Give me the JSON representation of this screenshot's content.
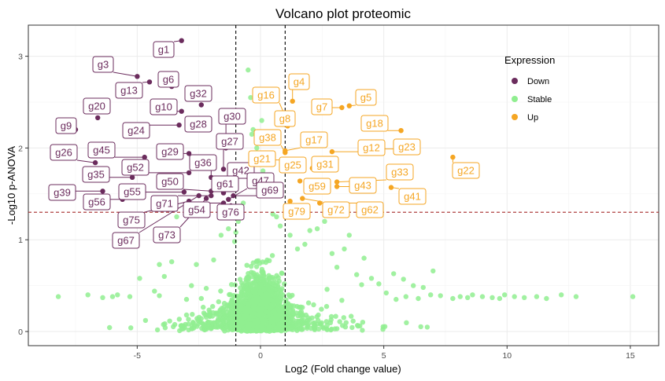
{
  "chart_data": {
    "type": "scatter",
    "title": "Volcano plot proteomic",
    "xlabel": "Log2 (Fold change value)",
    "ylabel": "-Log10 p-ANOVA",
    "xlim": [
      -9.3,
      16.3
    ],
    "ylim": [
      -0.15,
      3.33
    ],
    "x_ticks": [
      -5,
      0,
      5,
      10,
      15
    ],
    "y_ticks": [
      0,
      1,
      2,
      3
    ],
    "grid": true,
    "thresholds": {
      "fold_change_x": [
        -1,
        1
      ],
      "p_value_y": 1.3
    },
    "legend": {
      "title": "Expression",
      "position": "top-right",
      "entries": [
        {
          "label": "Down",
          "color": "#6b2c5d"
        },
        {
          "label": "Stable",
          "color": "#90ee90"
        },
        {
          "label": "Up",
          "color": "#f5a623"
        }
      ]
    },
    "colors": {
      "Down": "#6b2c5d",
      "Stable": "#90ee90",
      "Up": "#f5a623",
      "threshold_line": "#000000",
      "p_line": "#a52a2a"
    },
    "labeled_points": [
      {
        "gene": "g1",
        "x": -3.2,
        "y": 3.17,
        "group": "Down"
      },
      {
        "gene": "g3",
        "x": -5.0,
        "y": 2.78,
        "group": "Down"
      },
      {
        "gene": "g6",
        "x": -3.6,
        "y": 2.67,
        "group": "Down"
      },
      {
        "gene": "g13",
        "x": -4.5,
        "y": 2.72,
        "group": "Down"
      },
      {
        "gene": "g32",
        "x": -2.4,
        "y": 2.47,
        "group": "Down"
      },
      {
        "gene": "g10",
        "x": -3.2,
        "y": 2.4,
        "group": "Down"
      },
      {
        "gene": "g20",
        "x": -6.6,
        "y": 2.33,
        "group": "Down"
      },
      {
        "gene": "g9",
        "x": -7.5,
        "y": 2.2,
        "group": "Down"
      },
      {
        "gene": "g24",
        "x": -3.3,
        "y": 2.25,
        "group": "Down"
      },
      {
        "gene": "g28",
        "x": -2.6,
        "y": 2.2,
        "group": "Down"
      },
      {
        "gene": "g30",
        "x": -1.4,
        "y": 2.0,
        "group": "Down"
      },
      {
        "gene": "g27",
        "x": -1.5,
        "y": 1.77,
        "group": "Down"
      },
      {
        "gene": "g29",
        "x": -2.9,
        "y": 1.94,
        "group": "Down"
      },
      {
        "gene": "g26",
        "x": -6.7,
        "y": 1.84,
        "group": "Down"
      },
      {
        "gene": "g45",
        "x": -4.7,
        "y": 1.9,
        "group": "Down"
      },
      {
        "gene": "g36",
        "x": -2.0,
        "y": 1.68,
        "group": "Down"
      },
      {
        "gene": "g52",
        "x": -2.9,
        "y": 1.73,
        "group": "Down"
      },
      {
        "gene": "g35",
        "x": -5.2,
        "y": 1.68,
        "group": "Down"
      },
      {
        "gene": "g42",
        "x": -1.6,
        "y": 1.58,
        "group": "Down"
      },
      {
        "gene": "g50",
        "x": -2.0,
        "y": 1.53,
        "group": "Down"
      },
      {
        "gene": "g61",
        "x": -1.5,
        "y": 1.51,
        "group": "Down"
      },
      {
        "gene": "g47",
        "x": -1.3,
        "y": 1.44,
        "group": "Down"
      },
      {
        "gene": "g39",
        "x": -6.4,
        "y": 1.53,
        "group": "Down"
      },
      {
        "gene": "g55",
        "x": -3.1,
        "y": 1.52,
        "group": "Down"
      },
      {
        "gene": "g69",
        "x": -1.1,
        "y": 1.48,
        "group": "Down"
      },
      {
        "gene": "g56",
        "x": -5.6,
        "y": 1.44,
        "group": "Down"
      },
      {
        "gene": "g71",
        "x": -2.0,
        "y": 1.48,
        "group": "Down"
      },
      {
        "gene": "g54",
        "x": -1.5,
        "y": 1.4,
        "group": "Down"
      },
      {
        "gene": "g76",
        "x": -1.2,
        "y": 1.37,
        "group": "Down"
      },
      {
        "gene": "g75",
        "x": -2.9,
        "y": 1.42,
        "group": "Down"
      },
      {
        "gene": "g73",
        "x": -2.2,
        "y": 1.45,
        "group": "Down"
      },
      {
        "gene": "g67",
        "x": -2.5,
        "y": 1.48,
        "group": "Down"
      },
      {
        "gene": "g4",
        "x": 1.3,
        "y": 2.51,
        "group": "Up"
      },
      {
        "gene": "g16",
        "x": 1.0,
        "y": 2.35,
        "group": "Up"
      },
      {
        "gene": "g7",
        "x": 3.3,
        "y": 2.44,
        "group": "Up"
      },
      {
        "gene": "g5",
        "x": 3.6,
        "y": 2.46,
        "group": "Up"
      },
      {
        "gene": "g8",
        "x": 1.1,
        "y": 2.24,
        "group": "Up"
      },
      {
        "gene": "g18",
        "x": 5.7,
        "y": 2.19,
        "group": "Up"
      },
      {
        "gene": "g38",
        "x": 1.0,
        "y": 1.95,
        "group": "Up"
      },
      {
        "gene": "g17",
        "x": 1.0,
        "y": 1.97,
        "group": "Up"
      },
      {
        "gene": "g12",
        "x": 2.9,
        "y": 1.96,
        "group": "Up"
      },
      {
        "gene": "g23",
        "x": 4.4,
        "y": 1.99,
        "group": "Up"
      },
      {
        "gene": "g21",
        "x": 1.0,
        "y": 1.87,
        "group": "Up"
      },
      {
        "gene": "g25",
        "x": 1.1,
        "y": 1.78,
        "group": "Up"
      },
      {
        "gene": "g31",
        "x": 2.1,
        "y": 1.78,
        "group": "Up"
      },
      {
        "gene": "g22",
        "x": 7.8,
        "y": 1.9,
        "group": "Up"
      },
      {
        "gene": "g33",
        "x": 3.1,
        "y": 1.63,
        "group": "Up"
      },
      {
        "gene": "g59",
        "x": 1.6,
        "y": 1.64,
        "group": "Up"
      },
      {
        "gene": "g43",
        "x": 3.1,
        "y": 1.58,
        "group": "Up"
      },
      {
        "gene": "g41",
        "x": 5.3,
        "y": 1.57,
        "group": "Up"
      },
      {
        "gene": "g79",
        "x": 1.2,
        "y": 1.42,
        "group": "Up"
      },
      {
        "gene": "g72",
        "x": 1.7,
        "y": 1.45,
        "group": "Up"
      },
      {
        "gene": "g62",
        "x": 2.4,
        "y": 1.4,
        "group": "Up"
      }
    ]
  }
}
